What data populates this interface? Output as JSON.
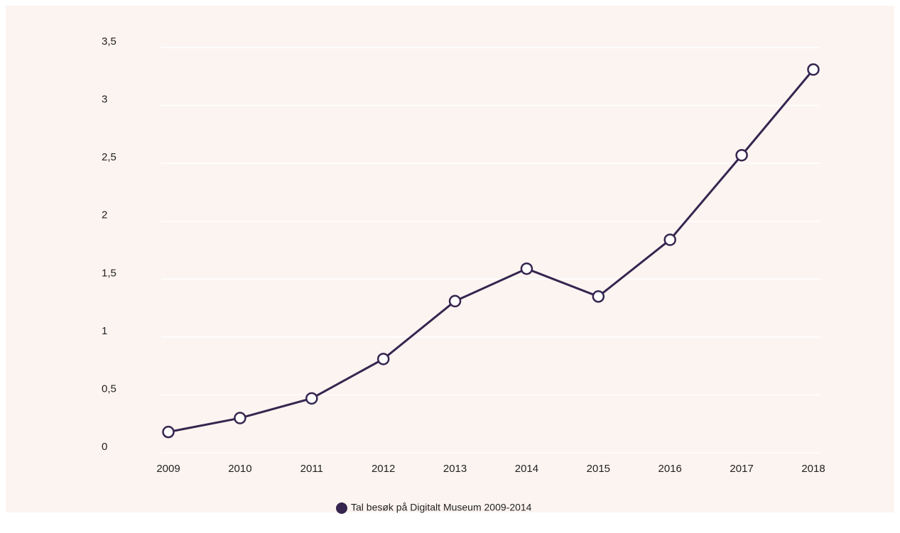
{
  "chart_data": {
    "type": "line",
    "categories": [
      "2009",
      "2010",
      "2011",
      "2012",
      "2013",
      "2014",
      "2015",
      "2016",
      "2017",
      "2018"
    ],
    "series": [
      {
        "name": "Tal besøk på Digitalt Museum 2009-2014",
        "color": "#35254f",
        "values": [
          0.18,
          0.3,
          0.47,
          0.81,
          1.31,
          1.59,
          1.35,
          1.84,
          2.57,
          3.31
        ]
      }
    ],
    "ylim": [
      0,
      3.5
    ],
    "yticks": [
      0,
      {
        "value": 0.5,
        "label": "0,5"
      },
      1,
      {
        "value": 1.5,
        "label": "1,5"
      },
      2,
      {
        "value": 2.5,
        "label": "2,5"
      },
      3,
      {
        "value": 3.5,
        "label": "3,5"
      }
    ],
    "grid": true,
    "legend": "bottom"
  }
}
